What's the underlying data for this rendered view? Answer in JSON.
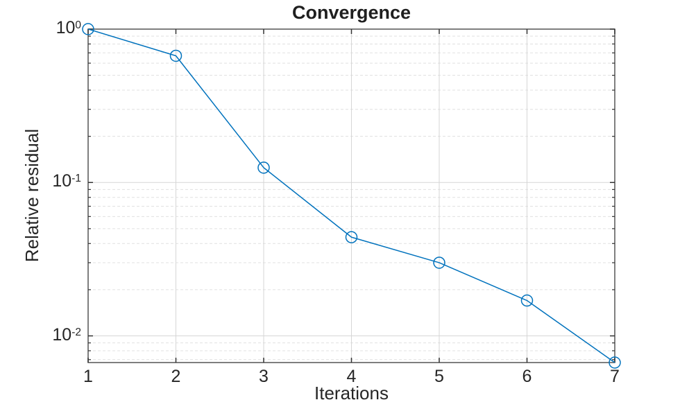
{
  "chart": {
    "title": "Convergence",
    "xlabel": "Iterations",
    "ylabel": "Relative residual"
  },
  "chart_data": {
    "type": "line",
    "title": "Convergence",
    "xlabel": "Iterations",
    "ylabel": "Relative residual",
    "x": [
      1,
      2,
      3,
      4,
      5,
      6,
      7
    ],
    "series": [
      {
        "name": "relative-residual",
        "values": [
          1.0,
          0.67,
          0.125,
          0.044,
          0.03,
          0.017,
          0.0067
        ],
        "color": "#0072BD",
        "marker": "circle",
        "marker_filled": false
      }
    ],
    "xscale": "linear",
    "yscale": "log",
    "xlim": [
      1,
      7
    ],
    "ylim": [
      0.0067,
      1.0
    ],
    "x_ticks": [
      "1",
      "2",
      "3",
      "4",
      "5",
      "6",
      "7"
    ],
    "y_ticks": [
      {
        "base": "10",
        "exp": "0",
        "value": 1.0
      },
      {
        "base": "10",
        "exp": "-1",
        "value": 0.1
      },
      {
        "base": "10",
        "exp": "-2",
        "value": 0.01
      }
    ],
    "grid": {
      "major": true,
      "minor": true
    },
    "legend": null,
    "colors": {
      "line": "#0072BD",
      "axis_frame": "#545454",
      "tick_mark": "#333333",
      "grid_major": "#d6d6d6",
      "grid_minor": "#e0e0e0",
      "text": "#262626",
      "background": "#ffffff"
    }
  }
}
